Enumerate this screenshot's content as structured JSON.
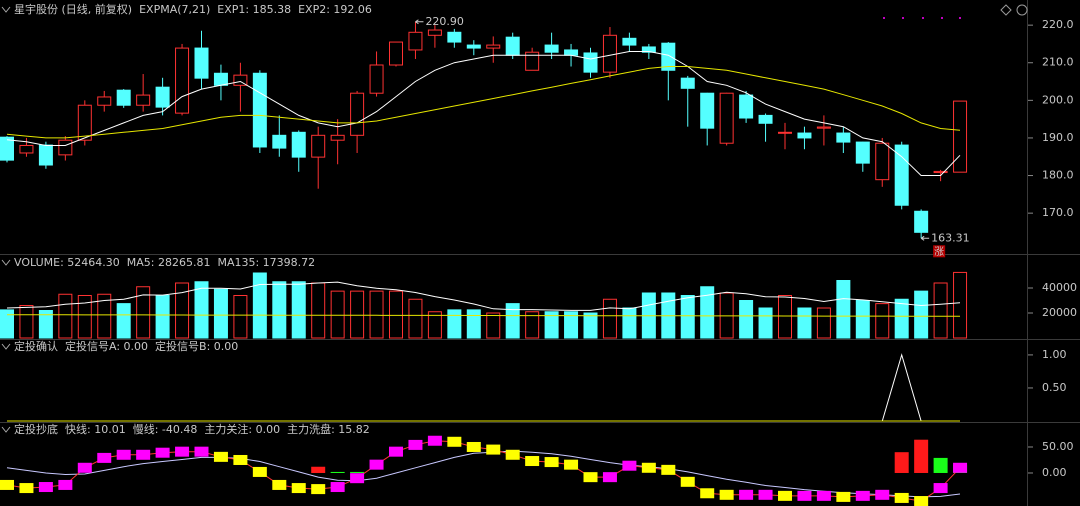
{
  "chart_data": [
    {
      "type": "candlestick",
      "title": "星宇股份 (日线, 前复权)",
      "subtitle": "EXPMA(7,21)",
      "open": [
        190.2,
        186,
        188.1,
        185.5,
        189.4,
        198.7,
        202.7,
        198.7,
        203.5,
        196.6,
        213.9,
        207.2,
        204,
        207.2,
        190.7,
        191.5,
        184.9,
        189.4,
        190.7,
        201.9,
        209.4,
        213.4,
        217.3,
        218.1,
        214.7,
        213.9,
        216.8,
        208,
        214.7,
        213.4,
        212.6,
        207.5,
        216.5,
        214.2,
        215.2,
        205.9,
        201.9,
        188.6,
        201.4,
        196,
        191.3,
        191.3,
        192.6,
        191.3,
        188.9,
        178.9,
        188.1,
        170.5,
        180.8,
        180.9
      ],
      "high": [
        190.5,
        190,
        189,
        190.5,
        200,
        202.5,
        203,
        207,
        206,
        215,
        218.5,
        209.5,
        210,
        208,
        196,
        192,
        193,
        195,
        202.5,
        213,
        215.5,
        220.9,
        220,
        219,
        216,
        217,
        218,
        214,
        218,
        215,
        214,
        219.5,
        218,
        215,
        215.5,
        206.5,
        202,
        202,
        202.5,
        196.5,
        194,
        193,
        196,
        193,
        189,
        190,
        189,
        171,
        181.5,
        199.8
      ],
      "low": [
        183.5,
        185,
        181.8,
        184,
        188,
        197,
        198,
        197,
        196,
        196,
        203,
        200,
        197,
        186,
        185,
        181,
        176.5,
        183,
        186,
        201,
        209,
        211,
        214,
        214,
        212,
        210,
        211,
        208,
        211,
        209,
        206,
        206,
        213,
        211,
        200,
        193,
        188,
        188,
        194,
        189,
        187,
        187,
        188,
        186,
        181,
        177,
        171,
        163.31,
        178.5,
        180.9
      ],
      "close": [
        184.1,
        188,
        182.8,
        189.4,
        198.7,
        200.9,
        198.7,
        201.4,
        198.2,
        213.9,
        205.9,
        204,
        206.7,
        187.6,
        187.3,
        184.9,
        190.7,
        190.7,
        201.9,
        209.4,
        215.5,
        218.1,
        218.7,
        215.5,
        213.9,
        214.7,
        212,
        212.8,
        212.8,
        212,
        207.5,
        217.3,
        214.7,
        212.8,
        208,
        203.2,
        192.6,
        201.9,
        195.3,
        193.9,
        191.5,
        190,
        192.9,
        188.9,
        183.3,
        188.6,
        172.1,
        164.9,
        181.1,
        199.8
      ],
      "up_color": "#ff3232",
      "down_color": "#54ffff",
      "series": [
        {
          "label": "EXP1: 185.38",
          "color": "#ffffff",
          "values": [
            189.5,
            189,
            188,
            188,
            190,
            192,
            194,
            196,
            197,
            201,
            203,
            204,
            205,
            202,
            199,
            196,
            194,
            193,
            194,
            197,
            201,
            205,
            208,
            210,
            211,
            212,
            212,
            212,
            212,
            212,
            211,
            212,
            213,
            213,
            212,
            209,
            205,
            204,
            202,
            199,
            197,
            195,
            194,
            193,
            190,
            189,
            185,
            180,
            180,
            185.38
          ]
        },
        {
          "label": "EXP2: 192.06",
          "color": "#e6e600",
          "values": [
            191,
            190.5,
            190,
            190,
            190.5,
            191,
            191.5,
            192,
            192.5,
            193.5,
            194.5,
            195.5,
            196,
            196,
            195.5,
            195,
            194.5,
            194,
            194,
            194.5,
            195.5,
            196.5,
            197.5,
            198.5,
            199.5,
            200.5,
            201.5,
            202.5,
            203.5,
            204.5,
            205.5,
            206.5,
            207.5,
            208.5,
            209,
            209,
            208.5,
            208,
            207,
            206,
            205,
            204,
            203,
            201.5,
            200,
            198.5,
            196.5,
            194,
            192.5,
            192.06
          ]
        }
      ],
      "max_label": "220.90",
      "min_label": "163.31",
      "tag": "涨",
      "ylim": [
        159.4,
        221.9
      ],
      "yticks": [
        {
          "value": 170,
          "label": "170.0"
        },
        {
          "value": 180,
          "label": "180.0"
        },
        {
          "value": 190,
          "label": "190.0"
        },
        {
          "value": 200,
          "label": "200.0"
        },
        {
          "value": 210,
          "label": "210.0"
        },
        {
          "value": 220,
          "label": "220.0"
        }
      ]
    },
    {
      "type": "volume",
      "bars": {
        "label": "VOLUME: 52464.30",
        "color": "#c8c8c8",
        "values": [
          22500,
          26000,
          22000,
          35000,
          34000,
          35000,
          27500,
          41000,
          34000,
          44000,
          45000,
          39000,
          34000,
          52000,
          45000,
          45000,
          44000,
          37500,
          37500,
          37500,
          37500,
          31000,
          21000,
          22500,
          22500,
          20000,
          27500,
          21000,
          21000,
          21000,
          20000,
          31000,
          24000,
          36000,
          36000,
          34000,
          41000,
          36000,
          30000,
          24000,
          34000,
          24000,
          24000,
          46000,
          30000,
          27500,
          31000,
          37500,
          44000,
          52464.3
        ]
      },
      "series": [
        {
          "label": "MA5: 28265.81",
          "color": "#ffffff",
          "values": [
            24000,
            24500,
            25000,
            27000,
            28000,
            30000,
            31000,
            34500,
            34300,
            36300,
            39800,
            39800,
            39200,
            42800,
            43000,
            43000,
            44000,
            44700,
            41800,
            39800,
            38600,
            36400,
            33100,
            30400,
            27200,
            23400,
            22700,
            22700,
            22400,
            22100,
            22100,
            24100,
            23400,
            26400,
            29400,
            32200,
            34200,
            36600,
            35400,
            33000,
            32800,
            31600,
            29200,
            31500,
            30500,
            29000,
            27500,
            26000,
            27000,
            28265.81
          ]
        },
        {
          "label": "MA135: 17398.72",
          "color": "#e6e600",
          "values": [
            18600,
            18600,
            18550,
            18550,
            18500,
            18500,
            18450,
            18450,
            18400,
            18400,
            18350,
            18350,
            18300,
            18300,
            18250,
            18250,
            18200,
            18200,
            18150,
            18150,
            18100,
            18100,
            18050,
            18050,
            18000,
            18000,
            17950,
            17950,
            17900,
            17900,
            17850,
            17850,
            17800,
            17800,
            17750,
            17750,
            17700,
            17700,
            17650,
            17650,
            17600,
            17600,
            17550,
            17550,
            17500,
            17500,
            17450,
            17450,
            17420,
            17398.72
          ]
        }
      ],
      "ylim": [
        0,
        64000
      ],
      "yticks": [
        20000,
        40000
      ]
    },
    {
      "type": "line",
      "title": "定投确认",
      "series": [
        {
          "label": "定投信号A: 0.00",
          "color": "#ffffff",
          "values": [
            0,
            0,
            0,
            0,
            0,
            0,
            0,
            0,
            0,
            0,
            0,
            0,
            0,
            0,
            0,
            0,
            0,
            0,
            0,
            0,
            0,
            0,
            0,
            0,
            0,
            0,
            0,
            0,
            0,
            0,
            0,
            0,
            0,
            0,
            0,
            0,
            0,
            0,
            0,
            0,
            0,
            0,
            0,
            0,
            0,
            0,
            1,
            0,
            0,
            0
          ]
        },
        {
          "label": "定投信号B: 0.00",
          "color": "#e6e600",
          "values": [
            0,
            0,
            0,
            0,
            0,
            0,
            0,
            0,
            0,
            0,
            0,
            0,
            0,
            0,
            0,
            0,
            0,
            0,
            0,
            0,
            0,
            0,
            0,
            0,
            0,
            0,
            0,
            0,
            0,
            0,
            0,
            0,
            0,
            0,
            0,
            0,
            0,
            0,
            0,
            0,
            0,
            0,
            0,
            0,
            0,
            0,
            0,
            0,
            0,
            0
          ]
        }
      ],
      "ylim": [
        0,
        1.15
      ],
      "yticks": [
        {
          "value": 0.5,
          "label": "0.50"
        },
        {
          "value": 1,
          "label": "1.00"
        }
      ]
    },
    {
      "type": "indicator",
      "title": "定投抄底",
      "fast": {
        "label": "快线: 10.01",
        "color": "#ff3232",
        "rise_color": "#ff00ff",
        "fall_color": "#ffff00",
        "values": [
          -23,
          -29,
          -27,
          -23,
          10,
          29,
          35,
          35,
          39,
          41,
          41,
          31,
          25,
          2,
          -23,
          -29,
          -31,
          -27,
          -10,
          16,
          41,
          54,
          62,
          60,
          50,
          45,
          35,
          23,
          21,
          16,
          -8,
          -8,
          14,
          10,
          6,
          -17,
          -39,
          -42,
          -42,
          -42,
          -44,
          -44,
          -44,
          -46,
          -44,
          -42,
          -48,
          -54,
          -29,
          10.01
        ]
      },
      "slow": {
        "label": "慢线: -40.48",
        "color": "#c8c8ff",
        "values": [
          10,
          5,
          0,
          -3,
          -2,
          5,
          12,
          18,
          22,
          26,
          30,
          30,
          28,
          22,
          12,
          2,
          -8,
          -14,
          -15,
          -10,
          0,
          10,
          20,
          30,
          38,
          40,
          42,
          40,
          37,
          32,
          26,
          20,
          15,
          12,
          8,
          2,
          -5,
          -12,
          -18,
          -24,
          -28,
          -32,
          -35,
          -38,
          -40,
          -42,
          -44,
          -46,
          -45,
          -40.48
        ]
      },
      "bars": [
        {
          "label": "主力关注: 0.00",
          "color": "#ff1a1a",
          "values": [
            0,
            0,
            0,
            0,
            0,
            0,
            0,
            0,
            0,
            0,
            0,
            0,
            0,
            0,
            0,
            0,
            12,
            0,
            0,
            0,
            0,
            0,
            0,
            0,
            0,
            0,
            0,
            0,
            0,
            0,
            0,
            0,
            0,
            0,
            0,
            0,
            0,
            0,
            0,
            0,
            0,
            0,
            0,
            0,
            0,
            0,
            40,
            64,
            0,
            0
          ]
        },
        {
          "label": "主力洗盘: 15.82",
          "color": "#1aff1a",
          "values": [
            0,
            0,
            0,
            0,
            0,
            0,
            0,
            0,
            0,
            0,
            0,
            0,
            0,
            0,
            0,
            0,
            0,
            2,
            2,
            0,
            0,
            0,
            0,
            0,
            0,
            0,
            0,
            0,
            0,
            0,
            0,
            0,
            0,
            0,
            0,
            0,
            0,
            0,
            0,
            0,
            0,
            0,
            0,
            0,
            0,
            0,
            0,
            0,
            29,
            15.82
          ]
        }
      ],
      "ylim": [
        -63.5,
        69.2
      ],
      "yticks": [
        {
          "value": 0,
          "label": "0.00"
        },
        {
          "value": 50,
          "label": "50.00"
        }
      ]
    }
  ]
}
